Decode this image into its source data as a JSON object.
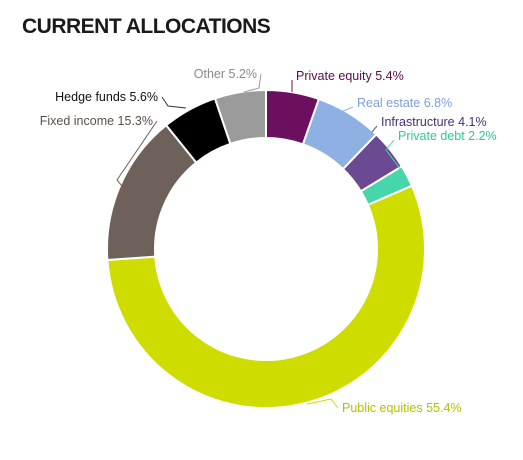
{
  "chart_data": {
    "type": "pie",
    "title": "CURRENT ALLOCATIONS",
    "slices": [
      {
        "name": "Private equity",
        "value": 5.4,
        "label": "Private equity 5.4%",
        "color": "#6c0f5e",
        "label_color": "#5a0c4f"
      },
      {
        "name": "Real estate",
        "value": 6.8,
        "label": "Real estate 6.8%",
        "color": "#8fb0e3",
        "label_color": "#7f9fd8"
      },
      {
        "name": "Infrastructure",
        "value": 4.1,
        "label": "Infrastructure 4.1%",
        "color": "#6b4a93",
        "label_color": "#4a2f72"
      },
      {
        "name": "Private debt",
        "value": 2.2,
        "label": "Private debt 2.2%",
        "color": "#45d6ab",
        "label_color": "#2fc79a"
      },
      {
        "name": "Public equities",
        "value": 55.4,
        "label": "Public equities 55.4%",
        "color": "#cfdc00",
        "label_color": "#b3c000"
      },
      {
        "name": "Fixed income",
        "value": 15.3,
        "label": "Fixed income 15.3%",
        "color": "#6e6159",
        "label_color": "#5a4f49"
      },
      {
        "name": "Hedge funds",
        "value": 5.6,
        "label": "Hedge funds 5.6%",
        "color": "#000000",
        "label_color": "#111111"
      },
      {
        "name": "Other",
        "value": 5.2,
        "label": "Other 5.2%",
        "color": "#9b9b9b",
        "label_color": "#8a8a8a"
      }
    ]
  }
}
